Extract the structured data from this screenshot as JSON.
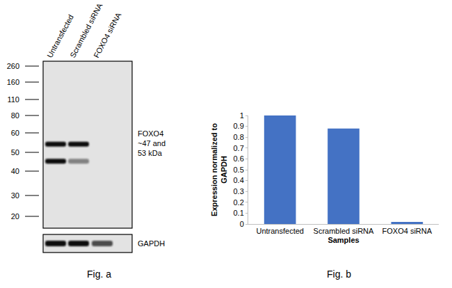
{
  "chart_data": {
    "type": "bar",
    "categories": [
      "Untransfected",
      "Scrambled siRNA",
      "FOXO4 siRNA"
    ],
    "values": [
      1,
      0.88,
      0.02
    ],
    "color": "#4472c4",
    "xlabel": "Samples",
    "ylabel": "Expression normalized to GAPDH",
    "ylim": [
      0,
      1
    ],
    "yticks": [
      0,
      0.1,
      0.2,
      0.3,
      0.4,
      0.5,
      0.6,
      0.7,
      0.8,
      0.9,
      1
    ],
    "grid": false
  },
  "blot": {
    "lanes": [
      "Untransfected",
      "Scrambled siRNA",
      "FOXO4 siRNA"
    ],
    "markers": [
      260,
      160,
      110,
      80,
      60,
      50,
      40,
      30,
      20
    ],
    "band_label": [
      "FOXO4",
      "~47 and",
      "53 kDa"
    ],
    "bands": [
      {
        "kda": 54,
        "intensity": [
          1,
          1,
          0
        ]
      },
      {
        "kda": 45,
        "intensity": [
          1,
          0.45,
          0
        ]
      }
    ],
    "loading_control": {
      "label": "GAPDH",
      "intensity": [
        1,
        1,
        0.7
      ]
    }
  },
  "captions": [
    "Fig. a",
    "Fig. b"
  ]
}
